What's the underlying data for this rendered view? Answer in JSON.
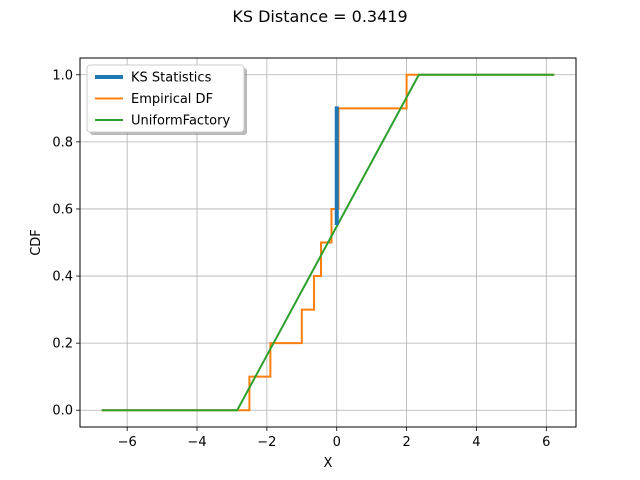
{
  "chart_data": {
    "type": "line",
    "title": "KS Distance = 0.3419",
    "xlabel": "X",
    "ylabel": "CDF",
    "xlim": [
      -7.35,
      6.85
    ],
    "ylim": [
      -0.05,
      1.05
    ],
    "xticks": [
      -6,
      -4,
      -2,
      0,
      2,
      4,
      6
    ],
    "xtick_labels": [
      "−6",
      "−4",
      "−2",
      "0",
      "2",
      "4",
      "6"
    ],
    "yticks": [
      0.0,
      0.2,
      0.4,
      0.6,
      0.8,
      1.0
    ],
    "ytick_labels": [
      "0.0",
      "0.2",
      "0.4",
      "0.6",
      "0.8",
      "1.0"
    ],
    "grid": true,
    "legend_position": "top-left",
    "series": [
      {
        "name": "KS Statistics",
        "color": "#1f77b4",
        "line_width": 4,
        "x": [
          0.0,
          0.0
        ],
        "y": [
          0.5581,
          0.9
        ]
      },
      {
        "name": "Empirical DF",
        "color": "#ff7f0e",
        "line_width": 2,
        "step": true,
        "x": [
          -6.7,
          -2.5,
          -2.5,
          -1.9,
          -1.9,
          -1.0,
          -1.0,
          -0.65,
          -0.65,
          -0.45,
          -0.45,
          -0.15,
          -0.15,
          0.05,
          0.05,
          2.0,
          2.0,
          6.2
        ],
        "y": [
          0.0,
          0.0,
          0.1,
          0.1,
          0.2,
          0.2,
          0.3,
          0.3,
          0.4,
          0.4,
          0.5,
          0.5,
          0.6,
          0.6,
          0.9,
          0.9,
          1.0,
          1.0
        ]
      },
      {
        "name": "UniformFactory",
        "color": "#2ca02c",
        "line_width": 2,
        "x": [
          -6.7,
          -2.85,
          2.35,
          6.2
        ],
        "y": [
          0.0,
          0.0,
          1.0,
          1.0
        ]
      }
    ]
  }
}
